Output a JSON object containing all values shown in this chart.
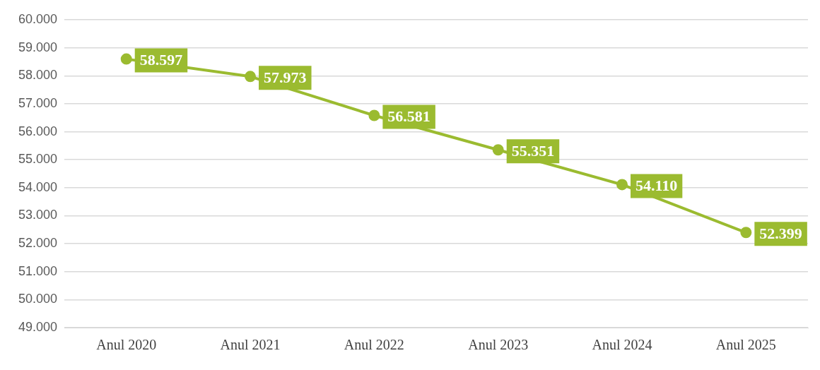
{
  "chart_data": {
    "type": "line",
    "categories": [
      "Anul 2020",
      "Anul 2021",
      "Anul 2022",
      "Anul 2023",
      "Anul 2024",
      "Anul 2025"
    ],
    "series": [
      {
        "color": "#9bbb30",
        "values": [
          58597,
          57973,
          56581,
          55351,
          54110,
          52399
        ],
        "value_labels": [
          "58.597",
          "57.973",
          "56.581",
          "55.351",
          "54.110",
          "52.399"
        ]
      }
    ],
    "ylim": [
      49000,
      60000
    ],
    "yticks": [
      {
        "value": 49000,
        "label": "49.000"
      },
      {
        "value": 50000,
        "label": "50.000"
      },
      {
        "value": 51000,
        "label": "51.000"
      },
      {
        "value": 52000,
        "label": "52.000"
      },
      {
        "value": 53000,
        "label": "53.000"
      },
      {
        "value": 54000,
        "label": "54.000"
      },
      {
        "value": 55000,
        "label": "55.000"
      },
      {
        "value": 56000,
        "label": "56.000"
      },
      {
        "value": 57000,
        "label": "57.000"
      },
      {
        "value": 58000,
        "label": "58.000"
      },
      {
        "value": 59000,
        "label": "59.000"
      },
      {
        "value": 60000,
        "label": "60.000"
      }
    ],
    "grid": "y",
    "marker": "circle"
  }
}
